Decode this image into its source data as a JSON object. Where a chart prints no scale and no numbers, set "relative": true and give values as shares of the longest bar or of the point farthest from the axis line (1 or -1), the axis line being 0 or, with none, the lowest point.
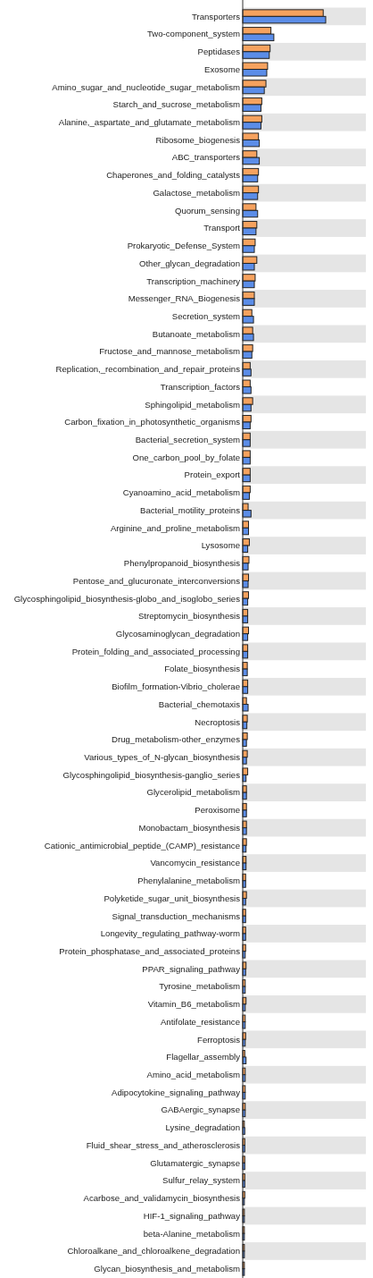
{
  "chart_data": {
    "type": "bar",
    "orientation": "horizontal",
    "relative": true,
    "categories": [
      "Transporters",
      "Two-component_system",
      "Peptidases",
      "Exosome",
      "Amino_sugar_and_nucleotide_sugar_metabolism",
      "Starch_and_sucrose_metabolism",
      "Alanine,_aspartate_and_glutamate_metabolism",
      "Ribosome_biogenesis",
      "ABC_transporters",
      "Chaperones_and_folding_catalysts",
      "Galactose_metabolism",
      "Quorum_sensing",
      "Transport",
      "Prokaryotic_Defense_System",
      "Other_glycan_degradation",
      "Transcription_machinery",
      "Messenger_RNA_Biogenesis",
      "Secretion_system",
      "Butanoate_metabolism",
      "Fructose_and_mannose_metabolism",
      "Replication,_recombination_and_repair_proteins",
      "Transcription_factors",
      "Sphingolipid_metabolism",
      "Carbon_fixation_in_photosynthetic_organisms",
      "Bacterial_secretion_system",
      "One_carbon_pool_by_folate",
      "Protein_export",
      "Cyanoamino_acid_metabolism",
      "Bacterial_motility_proteins",
      "Arginine_and_proline_metabolism",
      "Lysosome",
      "Phenylpropanoid_biosynthesis",
      "Pentose_and_glucuronate_interconversions",
      "Glycosphingolipid_biosynthesis-globo_and_isoglobo_series",
      "Streptomycin_biosynthesis",
      "Glycosaminoglycan_degradation",
      "Protein_folding_and_associated_processing",
      "Folate_biosynthesis",
      "Biofilm_formation-Vibrio_cholerae",
      "Bacterial_chemotaxis",
      "Necroptosis",
      "Drug_metabolism-other_enzymes",
      "Various_types_of_N-glycan_biosynthesis",
      "Glycosphingolipid_biosynthesis-ganglio_series",
      "Glycerolipid_metabolism",
      "Peroxisome",
      "Monobactam_biosynthesis",
      "Cationic_antimicrobial_peptide_(CAMP)_resistance",
      "Vancomycin_resistance",
      "Phenylalanine_metabolism",
      "Polyketide_sugar_unit_biosynthesis",
      "Signal_transduction_mechanisms",
      "Longevity_regulating_pathway-worm",
      "Protein_phosphatase_and_associated_proteins",
      "PPAR_signaling_pathway",
      "Tyrosine_metabolism",
      "Vitamin_B6_metabolism",
      "Antifolate_resistance",
      "Ferroptosis",
      "Flagellar_assembly",
      "Amino_acid_metabolism",
      "Adipocytokine_signaling_pathway",
      "GABAergic_synapse",
      "Lysine_degradation",
      "Fluid_shear_stress_and_atherosclerosis",
      "Glutamatergic_synapse",
      "Sulfur_relay_system",
      "Acarbose_and_validamycin_biosynthesis",
      "HIF-1_signaling_pathway",
      "beta-Alanine_metabolism",
      "Chloroalkane_and_chloroalkene_degradation",
      "Glycan_biosynthesis_and_metabolism"
    ],
    "series": [
      {
        "color": "#f6a25e",
        "values": [
          0.97,
          0.34,
          0.33,
          0.3,
          0.28,
          0.23,
          0.23,
          0.19,
          0.17,
          0.19,
          0.19,
          0.16,
          0.17,
          0.15,
          0.17,
          0.15,
          0.14,
          0.11,
          0.12,
          0.12,
          0.09,
          0.09,
          0.12,
          0.1,
          0.09,
          0.09,
          0.09,
          0.09,
          0.065,
          0.07,
          0.08,
          0.075,
          0.07,
          0.07,
          0.06,
          0.07,
          0.06,
          0.055,
          0.06,
          0.045,
          0.055,
          0.055,
          0.055,
          0.06,
          0.045,
          0.045,
          0.045,
          0.045,
          0.04,
          0.035,
          0.045,
          0.035,
          0.035,
          0.035,
          0.04,
          0.03,
          0.04,
          0.03,
          0.035,
          0.025,
          0.03,
          0.03,
          0.03,
          0.02,
          0.025,
          0.025,
          0.025,
          0.025,
          0.02,
          0.02,
          0.02,
          0.02
        ]
      },
      {
        "color": "#5b8de8",
        "values": [
          1,
          0.375,
          0.32,
          0.29,
          0.26,
          0.22,
          0.22,
          0.2,
          0.2,
          0.18,
          0.18,
          0.18,
          0.16,
          0.14,
          0.14,
          0.14,
          0.14,
          0.13,
          0.13,
          0.11,
          0.1,
          0.1,
          0.1,
          0.09,
          0.09,
          0.09,
          0.09,
          0.08,
          0.1,
          0.07,
          0.06,
          0.065,
          0.065,
          0.06,
          0.06,
          0.06,
          0.06,
          0.055,
          0.06,
          0.065,
          0.05,
          0.045,
          0.045,
          0.04,
          0.045,
          0.045,
          0.045,
          0.04,
          0.04,
          0.035,
          0.035,
          0.035,
          0.035,
          0.03,
          0.035,
          0.03,
          0.03,
          0.03,
          0.03,
          0.04,
          0.03,
          0.03,
          0.03,
          0.025,
          0.025,
          0.025,
          0.025,
          0.02,
          0.02,
          0.02,
          0.02,
          0.02
        ]
      }
    ]
  }
}
